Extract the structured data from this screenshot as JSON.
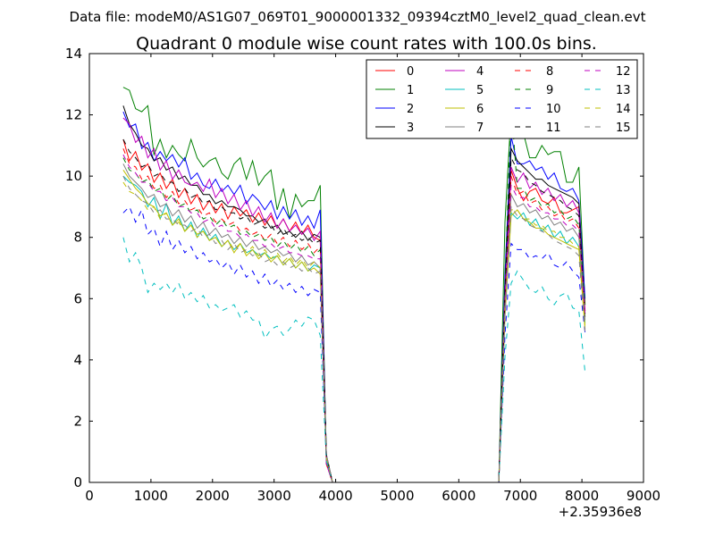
{
  "figure": {
    "suptitle": "Data file: modeM0/AS1G07_069T01_9000001332_09394cztM0_level2_quad_clean.evt",
    "background": "#ffffff"
  },
  "chart_data": {
    "type": "line",
    "title": "Quadrant 0 module wise count rates with 100.0s bins.",
    "xlabel": "",
    "ylabel": "",
    "x_offset_label": "+2.35936e8",
    "xlim": [
      0,
      9000
    ],
    "ylim": [
      0,
      14
    ],
    "xticks": [
      0,
      1000,
      2000,
      3000,
      4000,
      5000,
      6000,
      7000,
      8000,
      9000
    ],
    "xtick_labels": [
      "0",
      "1000",
      "2000",
      "3000",
      "4000",
      "5000",
      "6000",
      "7000",
      "8000",
      "9000"
    ],
    "yticks": [
      0,
      2,
      4,
      6,
      8,
      10,
      12,
      14
    ],
    "ytick_labels": [
      "0",
      "2",
      "4",
      "6",
      "8",
      "10",
      "12",
      "14"
    ],
    "grid": false,
    "legend": {
      "placement": "top-right",
      "columns": 4
    },
    "segments_x": {
      "seg1": [
        550,
        650,
        750,
        850,
        950,
        1050,
        1150,
        1250,
        1350,
        1450,
        1550,
        1650,
        1750,
        1850,
        1950,
        2050,
        2150,
        2250,
        2350,
        2450,
        2550,
        2650,
        2750,
        2850,
        2950,
        3050,
        3150,
        3250,
        3350,
        3450,
        3550,
        3650,
        3750
      ],
      "gap": [
        3850,
        3950,
        4050,
        6650
      ],
      "seg2": [
        6750,
        6850,
        6950,
        7050,
        7150,
        7250,
        7350,
        7450,
        7550,
        7650,
        7750,
        7850,
        7950,
        8050
      ]
    },
    "series": [
      {
        "name": "0",
        "color": "#ff0000",
        "dash": "solid",
        "seg1": [
          11.2,
          10.5,
          10.8,
          10.2,
          10.4,
          9.8,
          10.1,
          9.6,
          9.9,
          9.3,
          9.6,
          9.1,
          9.4,
          8.9,
          9.2,
          8.8,
          9.1,
          8.6,
          9.0,
          8.7,
          8.9,
          8.5,
          8.8,
          8.4,
          8.7,
          8.3,
          8.6,
          8.2,
          8.5,
          8.1,
          8.4,
          8.0,
          7.9
        ],
        "seg2": [
          6.0,
          10.2,
          9.6,
          9.2,
          9.5,
          9.6,
          9.2,
          9.1,
          9.3,
          8.8,
          8.8,
          8.9,
          9.0,
          5.6
        ]
      },
      {
        "name": "1",
        "color": "#008000",
        "dash": "solid",
        "seg1": [
          12.9,
          12.8,
          12.2,
          12.1,
          12.3,
          10.7,
          11.2,
          10.6,
          11.0,
          10.7,
          10.5,
          11.2,
          10.6,
          10.3,
          10.5,
          10.6,
          10.1,
          9.9,
          10.4,
          10.6,
          9.9,
          10.5,
          9.7,
          10.0,
          10.2,
          8.9,
          9.6,
          8.6,
          9.4,
          9.0,
          9.2,
          9.2,
          9.7
        ],
        "seg2": [
          8.5,
          12.1,
          11.3,
          11.4,
          10.6,
          10.6,
          11.0,
          10.7,
          10.8,
          10.8,
          9.8,
          9.8,
          10.3,
          5.8
        ]
      },
      {
        "name": "2",
        "color": "#0000ff",
        "dash": "solid",
        "seg1": [
          12.1,
          11.6,
          11.7,
          10.9,
          11.1,
          10.5,
          10.8,
          10.5,
          10.7,
          10.3,
          10.6,
          9.9,
          10.1,
          9.7,
          9.6,
          9.9,
          9.5,
          9.7,
          9.4,
          9.7,
          9.1,
          9.4,
          9.2,
          8.9,
          9.2,
          8.6,
          9.0,
          8.6,
          8.9,
          8.4,
          8.7,
          8.3,
          8.9
        ],
        "seg2": [
          6.8,
          11.3,
          10.4,
          10.4,
          10.5,
          10.2,
          10.3,
          9.9,
          10.1,
          9.6,
          9.5,
          9.6,
          9.2,
          6.0
        ]
      },
      {
        "name": "3",
        "color": "#000000",
        "dash": "solid",
        "seg1": [
          12.3,
          11.7,
          11.4,
          11.0,
          10.9,
          10.5,
          10.6,
          10.2,
          10.3,
          9.9,
          10.0,
          9.7,
          9.7,
          9.4,
          9.4,
          9.1,
          9.2,
          9.0,
          9.0,
          8.9,
          8.7,
          8.7,
          8.5,
          8.6,
          8.3,
          8.4,
          8.1,
          8.2,
          8.0,
          8.2,
          7.9,
          8.1,
          8.0
        ],
        "seg2": [
          6.3,
          10.9,
          10.5,
          10.3,
          10.1,
          9.9,
          9.9,
          9.7,
          9.6,
          9.5,
          9.4,
          9.3,
          9.1,
          5.4
        ]
      },
      {
        "name": "4",
        "color": "#bf00bf",
        "dash": "solid",
        "seg1": [
          11.9,
          11.7,
          11.1,
          11.3,
          10.6,
          10.9,
          10.2,
          10.5,
          9.9,
          10.2,
          9.8,
          9.7,
          9.8,
          9.5,
          9.9,
          9.3,
          9.6,
          9.1,
          9.4,
          8.9,
          9.2,
          8.7,
          9.0,
          8.5,
          8.8,
          8.3,
          8.6,
          8.2,
          8.4,
          8.1,
          8.3,
          7.9,
          8.2
        ],
        "seg2": [
          6.1,
          10.3,
          9.8,
          10.1,
          9.6,
          9.8,
          9.4,
          9.6,
          9.2,
          9.4,
          9.0,
          9.2,
          8.8,
          5.5
        ]
      },
      {
        "name": "5",
        "color": "#00bfbf",
        "dash": "solid",
        "seg1": [
          10.0,
          9.8,
          9.7,
          9.5,
          9.0,
          9.3,
          8.6,
          9.1,
          8.4,
          8.7,
          8.2,
          8.5,
          8.0,
          8.3,
          7.9,
          8.1,
          7.7,
          7.9,
          7.6,
          7.8,
          7.5,
          7.6,
          7.4,
          7.5,
          7.3,
          7.4,
          7.1,
          7.3,
          7.0,
          7.2,
          6.9,
          7.1,
          7.0
        ],
        "seg2": [
          5.5,
          8.8,
          8.6,
          8.8,
          8.4,
          8.6,
          8.2,
          8.4,
          8.0,
          8.2,
          7.8,
          8.0,
          7.7,
          5.2
        ]
      },
      {
        "name": "6",
        "color": "#bfbf00",
        "dash": "solid",
        "seg1": [
          10.2,
          9.9,
          9.6,
          9.4,
          9.1,
          9.0,
          8.7,
          8.8,
          8.4,
          8.6,
          8.2,
          8.4,
          8.1,
          8.2,
          7.9,
          8.0,
          7.7,
          7.9,
          7.5,
          7.8,
          7.4,
          7.6,
          7.3,
          7.5,
          7.2,
          7.4,
          7.1,
          7.3,
          7.0,
          7.2,
          6.9,
          7.0,
          6.8
        ],
        "seg2": [
          5.4,
          8.7,
          8.9,
          8.6,
          8.5,
          8.3,
          8.3,
          8.1,
          8.0,
          7.9,
          7.8,
          7.7,
          7.6,
          5.0
        ]
      },
      {
        "name": "7",
        "color": "#808080",
        "dash": "solid",
        "seg1": [
          10.4,
          10.0,
          9.8,
          9.6,
          9.3,
          9.4,
          9.0,
          9.1,
          8.7,
          8.9,
          8.5,
          8.7,
          8.3,
          8.5,
          8.1,
          8.3,
          8.0,
          8.1,
          7.8,
          8.0,
          7.7,
          7.9,
          7.6,
          7.7,
          7.5,
          7.6,
          7.4,
          7.5,
          7.2,
          7.4,
          7.1,
          7.2,
          7.0
        ],
        "seg2": [
          5.6,
          9.4,
          9.0,
          9.1,
          8.8,
          8.9,
          8.6,
          8.7,
          8.4,
          8.5,
          8.2,
          8.3,
          8.0,
          5.3
        ]
      },
      {
        "name": "8",
        "color": "#ff0000",
        "dash": "dashed",
        "seg1": [
          10.9,
          10.4,
          10.3,
          9.9,
          10.0,
          9.6,
          9.7,
          9.3,
          9.5,
          9.1,
          9.2,
          8.9,
          9.0,
          8.7,
          8.8,
          8.5,
          8.6,
          8.4,
          8.5,
          8.2,
          8.3,
          8.1,
          8.2,
          7.9,
          8.1,
          7.8,
          8.0,
          7.7,
          7.9,
          7.6,
          7.8,
          7.5,
          7.7
        ],
        "seg2": [
          6.0,
          10.0,
          9.4,
          9.5,
          9.1,
          9.2,
          8.9,
          9.0,
          8.7,
          8.8,
          8.5,
          8.6,
          8.3,
          5.6
        ]
      },
      {
        "name": "9",
        "color": "#008000",
        "dash": "dashed",
        "seg1": [
          10.6,
          10.2,
          10.1,
          9.8,
          9.9,
          9.5,
          9.6,
          9.2,
          9.4,
          9.0,
          9.1,
          8.8,
          8.9,
          8.6,
          8.7,
          8.4,
          8.6,
          8.3,
          8.4,
          8.1,
          8.2,
          8.0,
          8.1,
          7.9,
          8.0,
          7.7,
          7.9,
          7.6,
          7.8,
          7.5,
          7.7,
          7.4,
          7.6
        ],
        "seg2": [
          6.4,
          12.4,
          9.6,
          9.6,
          9.2,
          9.3,
          9.0,
          9.1,
          8.8,
          8.9,
          8.6,
          8.7,
          8.4,
          5.8
        ]
      },
      {
        "name": "10",
        "color": "#0000ff",
        "dash": "dashed",
        "seg1": [
          8.8,
          9.0,
          8.5,
          8.9,
          8.1,
          8.3,
          7.7,
          8.2,
          7.6,
          7.9,
          7.5,
          7.7,
          7.3,
          7.5,
          7.2,
          7.3,
          7.0,
          7.2,
          6.8,
          7.1,
          6.7,
          6.9,
          6.5,
          6.8,
          6.4,
          6.6,
          6.3,
          6.5,
          6.2,
          6.4,
          6.1,
          6.3,
          6.2
        ],
        "seg2": [
          4.8,
          7.8,
          7.6,
          7.6,
          7.3,
          7.4,
          7.3,
          7.5,
          7.1,
          7.0,
          7.2,
          6.9,
          6.7,
          4.9
        ]
      },
      {
        "name": "11",
        "color": "#000000",
        "dash": "dashed",
        "seg1": [
          11.2,
          10.8,
          10.6,
          10.3,
          10.4,
          10.0,
          10.1,
          9.8,
          9.8,
          9.5,
          9.6,
          9.3,
          9.4,
          9.1,
          9.2,
          8.9,
          9.0,
          8.8,
          8.8,
          8.6,
          8.7,
          8.4,
          8.5,
          8.3,
          8.4,
          8.1,
          8.3,
          8.0,
          8.1,
          7.9,
          8.0,
          7.8,
          7.9
        ],
        "seg2": [
          6.2,
          10.6,
          10.2,
          10.1,
          9.8,
          9.7,
          9.5,
          9.4,
          9.3,
          9.2,
          9.0,
          8.9,
          8.7,
          5.5
        ]
      },
      {
        "name": "12",
        "color": "#bf00bf",
        "dash": "dashed",
        "seg1": [
          10.7,
          10.3,
          10.1,
          9.8,
          9.8,
          9.5,
          9.5,
          9.2,
          9.3,
          9.0,
          9.0,
          8.8,
          8.8,
          8.5,
          8.6,
          8.3,
          8.4,
          8.2,
          8.2,
          8.0,
          8.1,
          7.9,
          7.9,
          7.7,
          7.8,
          7.6,
          7.7,
          7.5,
          7.5,
          7.4,
          7.4,
          7.3,
          7.3
        ],
        "seg2": [
          5.8,
          9.7,
          9.3,
          9.3,
          9.0,
          9.0,
          8.8,
          8.8,
          8.6,
          8.6,
          8.4,
          8.4,
          8.2,
          5.5
        ]
      },
      {
        "name": "13",
        "color": "#00bfbf",
        "dash": "dashed",
        "seg1": [
          8.0,
          7.2,
          7.5,
          7.0,
          6.2,
          6.5,
          6.3,
          6.5,
          6.2,
          6.5,
          6.0,
          6.2,
          5.9,
          6.1,
          5.7,
          5.8,
          5.6,
          5.7,
          5.8,
          5.4,
          5.6,
          5.3,
          5.3,
          4.7,
          5.0,
          5.1,
          4.8,
          5.0,
          5.3,
          5.1,
          5.4,
          5.3,
          4.8
        ],
        "seg2": [
          4.1,
          6.5,
          6.9,
          6.6,
          6.3,
          6.2,
          6.4,
          6.0,
          5.8,
          6.1,
          6.2,
          5.7,
          5.6,
          3.6
        ]
      },
      {
        "name": "14",
        "color": "#bfbf00",
        "dash": "dashed",
        "seg1": [
          9.8,
          9.5,
          9.4,
          9.2,
          8.9,
          9.0,
          8.6,
          8.8,
          8.4,
          8.5,
          8.2,
          8.4,
          8.0,
          8.2,
          7.9,
          8.0,
          7.7,
          7.9,
          7.6,
          7.8,
          7.5,
          7.7,
          7.4,
          7.6,
          7.3,
          7.5,
          7.2,
          7.4,
          7.1,
          7.3,
          7.0,
          7.2,
          7.0
        ],
        "seg2": [
          5.6,
          8.9,
          8.9,
          8.6,
          8.6,
          8.4,
          8.4,
          8.2,
          8.2,
          8.0,
          8.0,
          7.8,
          7.7,
          5.1
        ]
      },
      {
        "name": "15",
        "color": "#808080",
        "dash": "dashed",
        "seg1": [
          10.0,
          9.6,
          9.4,
          9.2,
          9.1,
          8.8,
          8.9,
          8.6,
          8.6,
          8.4,
          8.4,
          8.2,
          8.3,
          8.0,
          8.1,
          7.8,
          7.9,
          7.6,
          7.8,
          7.5,
          7.6,
          7.4,
          7.5,
          7.2,
          7.3,
          7.1,
          7.2,
          7.0,
          7.1,
          6.9,
          7.0,
          6.8,
          6.9
        ],
        "seg2": [
          5.5,
          9.0,
          8.7,
          8.6,
          8.4,
          8.3,
          8.2,
          8.1,
          7.9,
          7.8,
          7.7,
          7.6,
          7.4,
          4.9
        ]
      }
    ]
  }
}
